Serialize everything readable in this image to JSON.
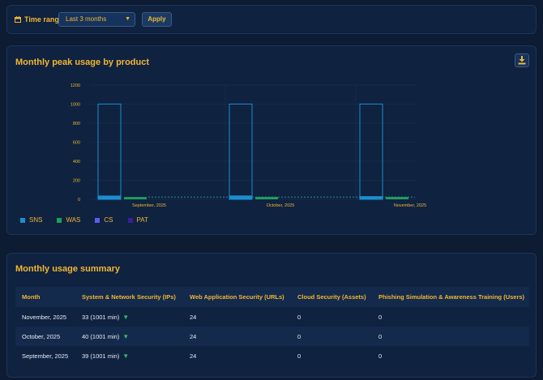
{
  "filter": {
    "time_range_label": "Time range",
    "selected_range": "Last 3 months",
    "apply_label": "Apply",
    "icon": "calendar-icon",
    "dropdown_icon": "chevron-down-icon"
  },
  "chart_card": {
    "title": "Monthly peak usage by product",
    "download_icon": "download-icon"
  },
  "chart_data": {
    "type": "bar",
    "title": "Monthly peak usage by product",
    "categories": [
      "September, 2025",
      "October, 2025",
      "November, 2025"
    ],
    "ylim": [
      0,
      1200
    ],
    "yticks": [
      0,
      200,
      400,
      600,
      800,
      1000,
      1200
    ],
    "series": [
      {
        "name": "SNS",
        "color": "#1a8fcf",
        "values": [
          39,
          40,
          33
        ],
        "limit": 1001
      },
      {
        "name": "WAS",
        "color": "#1fa05c",
        "values": [
          24,
          24,
          24
        ],
        "limit": 24
      },
      {
        "name": "CS",
        "color": "#5c5cf0",
        "values": [
          0,
          0,
          0
        ]
      },
      {
        "name": "PAT",
        "color": "#3a1e9a",
        "values": [
          0,
          0,
          0
        ]
      }
    ],
    "grid": true,
    "legend": "bottom-left"
  },
  "summary": {
    "title": "Monthly usage summary",
    "columns": [
      "Month",
      "System & Network Security (IPs)",
      "Web Application Security (URLs)",
      "Cloud Security (Assets)",
      "Phishing Simulation & Awareness Training (Users)"
    ],
    "rows": [
      {
        "month": "November, 2025",
        "sns": "33 (1001 min)",
        "was": "24",
        "cs": "0",
        "pat": "0"
      },
      {
        "month": "October, 2025",
        "sns": "40 (1001 min)",
        "was": "24",
        "cs": "0",
        "pat": "0"
      },
      {
        "month": "September, 2025",
        "sns": "39 (1001 min)",
        "was": "24",
        "cs": "0",
        "pat": "0"
      }
    ],
    "trend_icon": "triangle-down-icon",
    "trend_symbol": "▼"
  }
}
